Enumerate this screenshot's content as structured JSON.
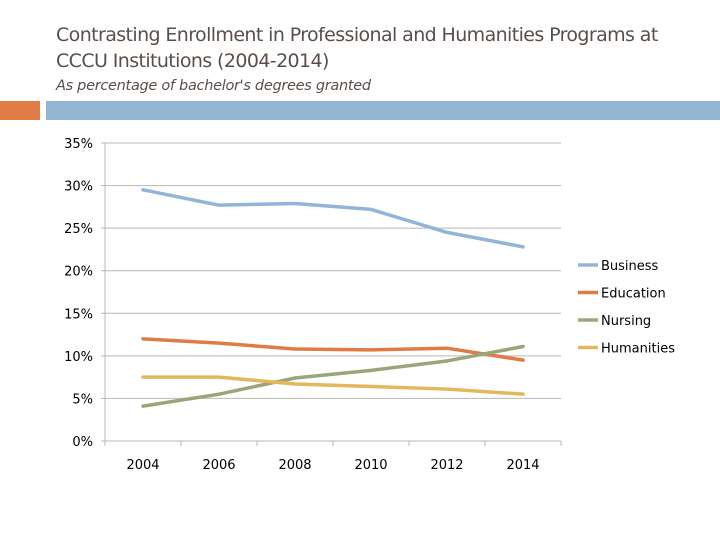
{
  "slide": {
    "title": "Contrasting Enrollment in Professional and Humanities Programs at CCCU Institutions (2004-2014)",
    "subtitle": "As percentage of bachelor's degrees granted",
    "accent_colors": {
      "orange": "#e07b45",
      "blue": "#93b4d3"
    }
  },
  "chart_data": {
    "type": "line",
    "title": "",
    "xlabel": "",
    "ylabel": "",
    "categories": [
      "2004",
      "2006",
      "2008",
      "2010",
      "2012",
      "2014"
    ],
    "ylim": [
      0,
      35
    ],
    "yticks": [
      "0%",
      "5%",
      "10%",
      "15%",
      "20%",
      "25%",
      "30%",
      "35%"
    ],
    "grid": true,
    "legend": "right",
    "series": [
      {
        "name": "Business",
        "color": "#93b4d6",
        "values": [
          29.5,
          27.7,
          27.9,
          27.2,
          24.5,
          22.8
        ]
      },
      {
        "name": "Education",
        "color": "#e07b45",
        "values": [
          12.0,
          11.5,
          10.8,
          10.7,
          10.9,
          9.5
        ]
      },
      {
        "name": "Nursing",
        "color": "#9aa57a",
        "values": [
          4.1,
          5.5,
          7.4,
          8.3,
          9.4,
          11.1
        ]
      },
      {
        "name": "Humanities",
        "color": "#e3b75c",
        "values": [
          7.5,
          7.5,
          6.7,
          6.4,
          6.1,
          5.5
        ]
      }
    ]
  }
}
